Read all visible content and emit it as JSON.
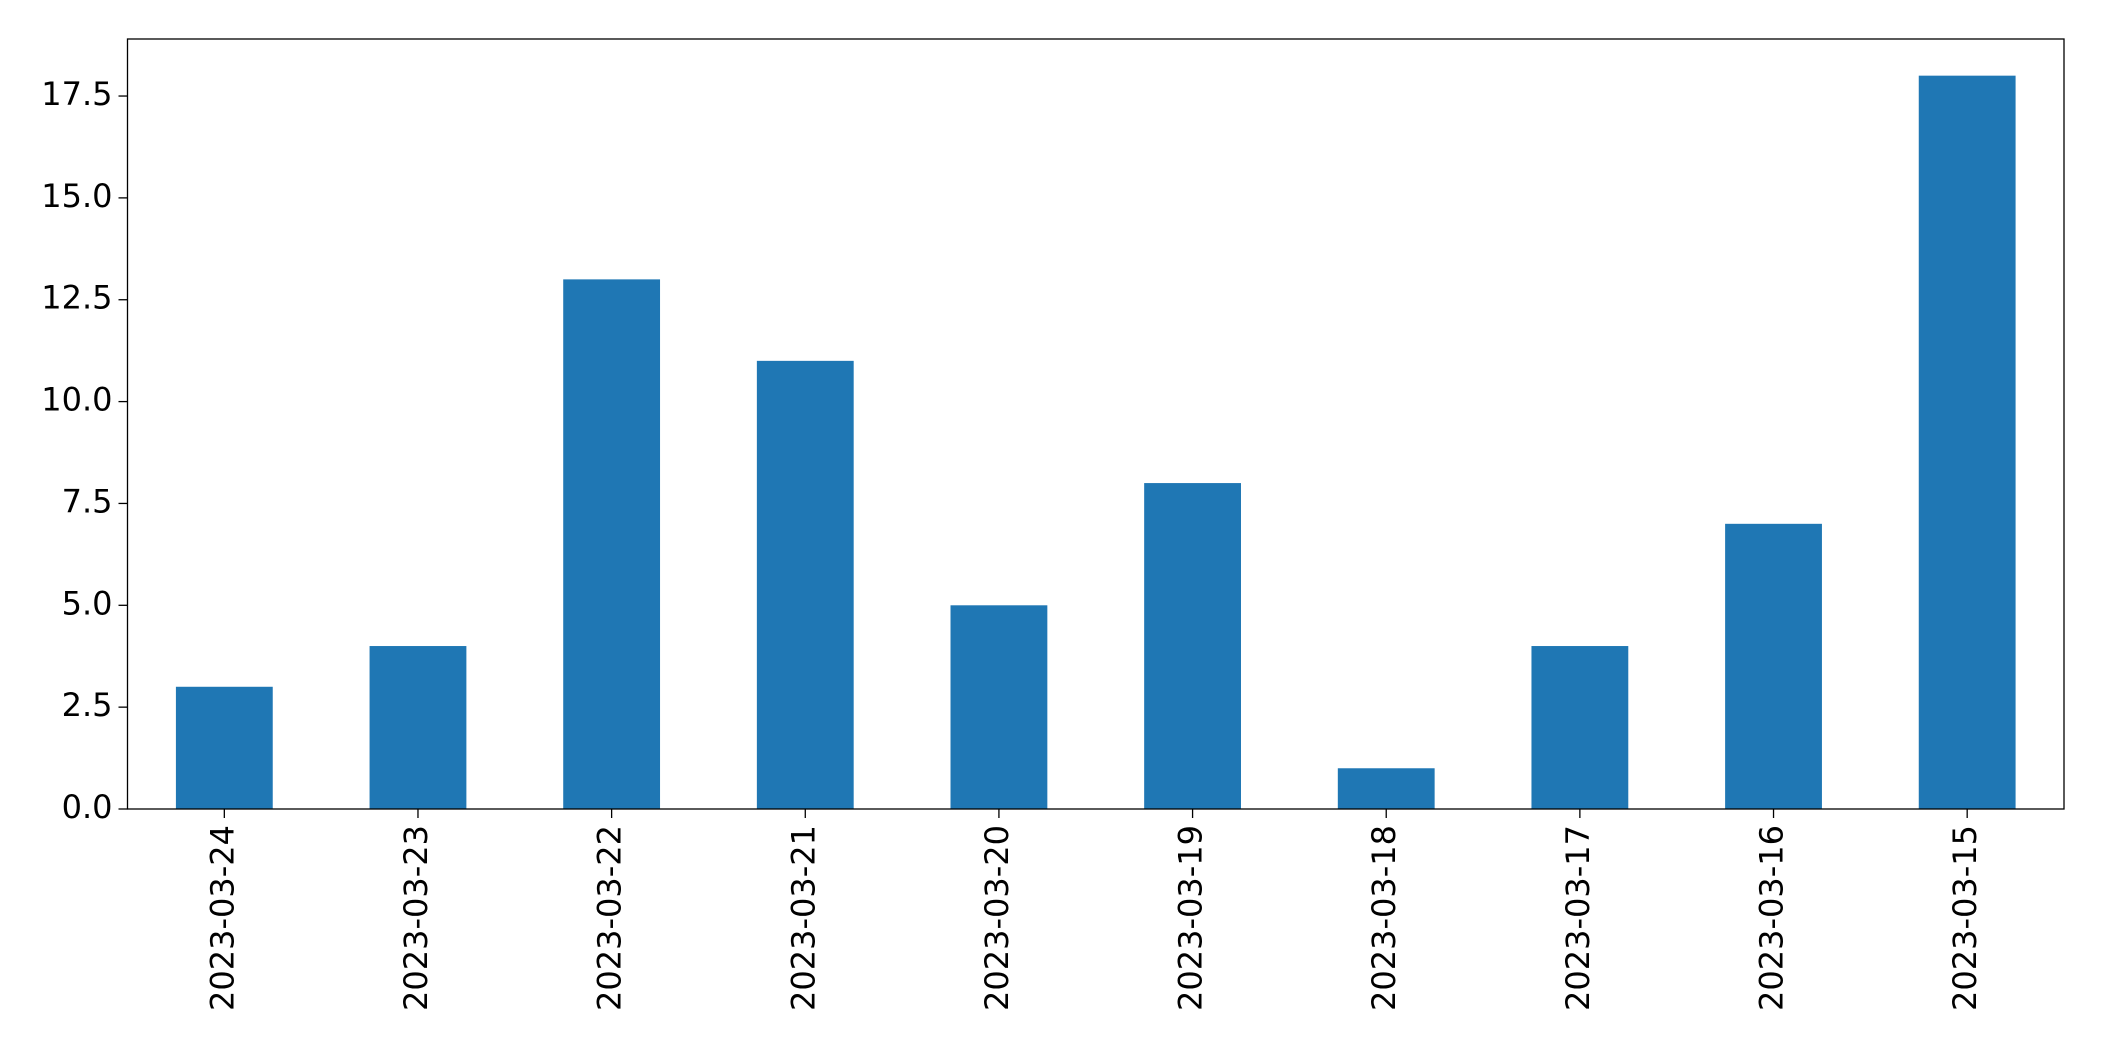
{
  "chart_data": {
    "type": "bar",
    "categories": [
      "2023-03-24",
      "2023-03-23",
      "2023-03-22",
      "2023-03-21",
      "2023-03-20",
      "2023-03-19",
      "2023-03-18",
      "2023-03-17",
      "2023-03-16",
      "2023-03-15"
    ],
    "values": [
      3,
      4,
      13,
      11,
      5,
      8,
      1,
      4,
      7,
      18
    ],
    "color": "#1f77b4",
    "ylim": [
      0,
      18.9
    ],
    "yticks": [
      {
        "value": 0,
        "label": "0.0"
      },
      2.5,
      {
        "value": 5,
        "label": "5.0"
      },
      7.5,
      {
        "value": 10,
        "label": "10.0"
      },
      12.5,
      {
        "value": 15,
        "label": "15.0"
      },
      17.5
    ],
    "grid": false
  }
}
